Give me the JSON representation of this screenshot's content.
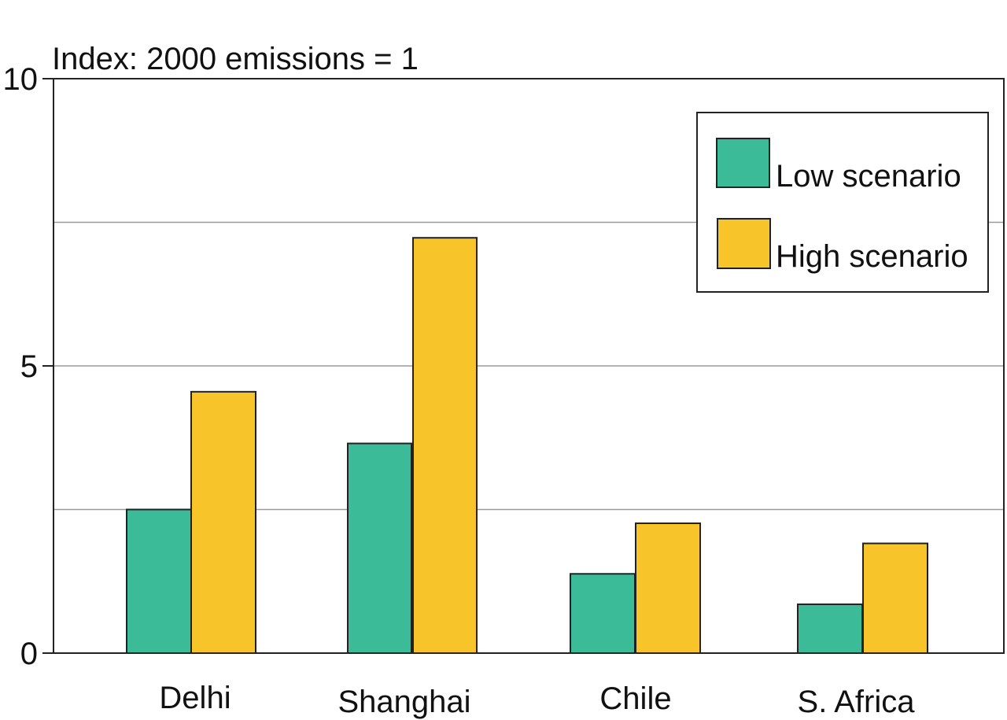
{
  "colors": {
    "low": "#3bbb98",
    "high": "#f7c52a",
    "axis": "#222222",
    "grid": "#9a9a9a"
  },
  "chart_data": {
    "type": "bar",
    "title": "Index: 2000 emissions = 1",
    "xlabel": "",
    "ylabel": "",
    "categories": [
      "Delhi",
      "Shanghai",
      "Chile",
      "S. Africa"
    ],
    "series": [
      {
        "name": "Low scenario",
        "color_key": "low",
        "values": [
          2.5,
          3.65,
          1.38,
          0.85
        ]
      },
      {
        "name": "High scenario",
        "color_key": "high",
        "values": [
          4.55,
          7.23,
          2.26,
          1.91
        ]
      }
    ],
    "ylim": [
      0,
      10
    ],
    "yticks": [
      0,
      5,
      10
    ],
    "gridlines": [
      2.5,
      5,
      7.5
    ],
    "grid": true,
    "legend_position": "top-right"
  }
}
